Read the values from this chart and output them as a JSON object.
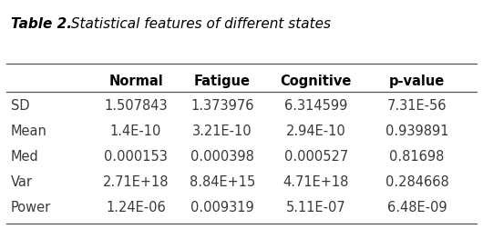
{
  "title_bold": "Table 2.",
  "title_italic": " Statistical features of different states",
  "columns": [
    "",
    "Normal",
    "Fatigue",
    "Cognitive",
    "p-value"
  ],
  "rows": [
    [
      "SD",
      "1.507843",
      "1.373976",
      "6.314599",
      "7.31E-56"
    ],
    [
      "Mean",
      "1.4E-10",
      "3.21E-10",
      "2.94E-10",
      "0.939891"
    ],
    [
      "Med",
      "0.000153",
      "0.000398",
      "0.000527",
      "0.81698"
    ],
    [
      "Var",
      "2.71E+18",
      "8.84E+15",
      "4.71E+18",
      "0.284668"
    ],
    [
      "Power",
      "1.24E-06",
      "0.009319",
      "5.11E-07",
      "6.48E-09"
    ]
  ],
  "text_color": "#3a3a3a",
  "header_color": "#000000",
  "line_color": "#555555",
  "bg_color": "#ffffff",
  "font_size": 10.5,
  "title_font_size": 11
}
